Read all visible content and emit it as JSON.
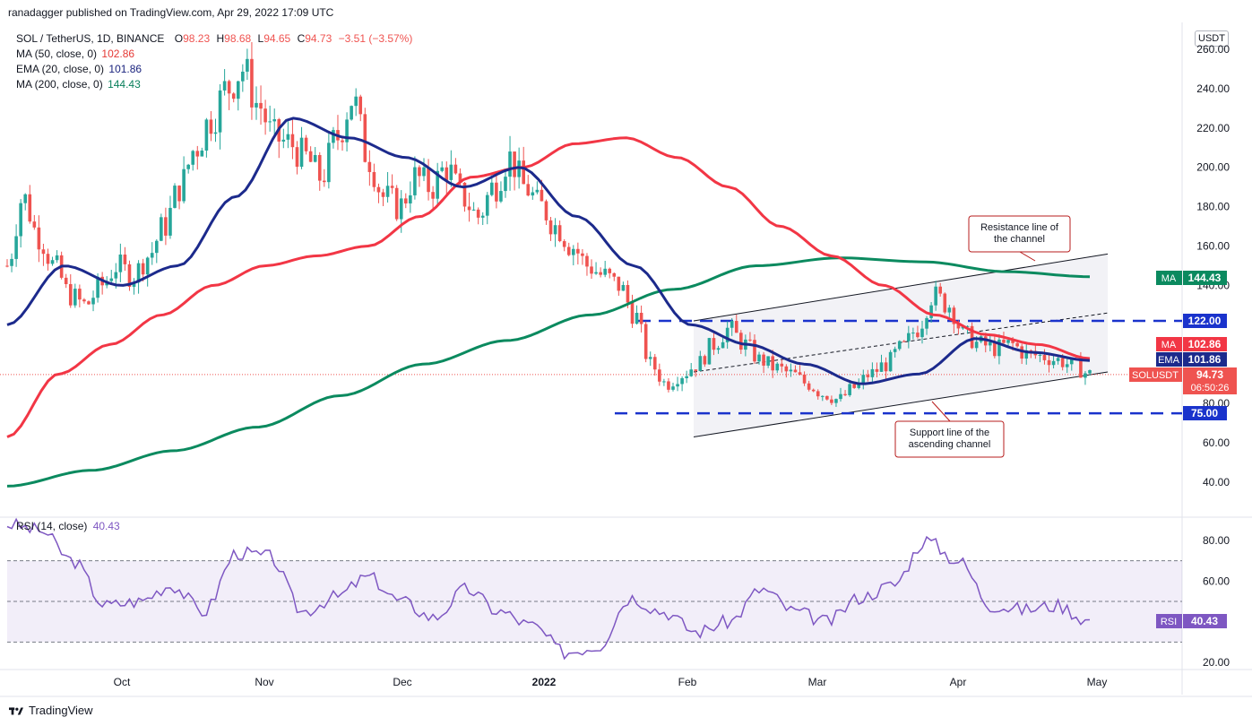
{
  "header": {
    "publish_line": "ranadagger published on TradingView.com, Apr 29, 2022 17:09 UTC",
    "symbol": "SOL / TetherUS, 1D, BINANCE",
    "ohlc": {
      "O": "98.23",
      "H": "98.68",
      "L": "94.65",
      "C": "94.73",
      "change": "−3.51 (−3.57%)"
    }
  },
  "legend": {
    "ma50": {
      "label": "MA (50, close, 0)",
      "value": "102.86",
      "color": "#e53935"
    },
    "ema20": {
      "label": "EMA (20, close, 0)",
      "value": "101.86",
      "color": "#1a237e"
    },
    "ma200": {
      "label": "MA (200, close, 0)",
      "value": "144.43",
      "color": "#087f5b"
    }
  },
  "currency_button": "USDT",
  "price_axis": {
    "ticks": [
      "260.00",
      "240.00",
      "220.00",
      "200.00",
      "180.00",
      "160.00",
      "140.00",
      "80.00",
      "60.00",
      "40.00"
    ]
  },
  "price_labels": {
    "ma": {
      "name": "MA",
      "value": "144.43"
    },
    "level_122": "122.00",
    "ma50": {
      "name": "MA",
      "value": "102.86"
    },
    "ema": {
      "name": "EMA",
      "value": "101.86"
    },
    "last": {
      "name": "SOLUSDT",
      "value": "94.73",
      "countdown": "06:50:26"
    },
    "level_75": "75.00"
  },
  "annotations": {
    "resistance": [
      "Resistance line of",
      "the channel"
    ],
    "support": [
      "Support line of the",
      "ascending channel"
    ]
  },
  "rsi": {
    "label": "RSI (14, close)",
    "value": "40.43",
    "axis_ticks": [
      "80.00",
      "60.00",
      "20.00"
    ],
    "tag": "RSI"
  },
  "time_axis": [
    "Oct",
    "Nov",
    "Dec",
    "2022",
    "Feb",
    "Mar",
    "Apr",
    "May"
  ],
  "footer": {
    "brand": "TradingView"
  },
  "colors": {
    "up": "#26a69a",
    "down": "#ef5350",
    "ma50": "#f23645",
    "ema20": "#1c2a8c",
    "ma200": "#0b8a5f",
    "rsi": "#7e57c2",
    "level": "#1a33cc"
  },
  "chart_data": {
    "type": "candlestick",
    "title": "SOL / TetherUS, 1D, BINANCE",
    "ylim": [
      25,
      265
    ],
    "levels": [
      122,
      75
    ],
    "channel": {
      "upper_start": 122,
      "upper_end": 156,
      "lower_start": 63,
      "lower_end": 96,
      "mid_start": 96,
      "mid_end": 126
    },
    "series": [
      {
        "name": "Price (close, approx)",
        "values": [
          150,
          185,
          165,
          150,
          135,
          130,
          140,
          150,
          145,
          155,
          170,
          190,
          210,
          225,
          240,
          250,
          232,
          215,
          212,
          205,
          195,
          215,
          235,
          205,
          185,
          180,
          195,
          190,
          200,
          185,
          175,
          190,
          205,
          190,
          180,
          170,
          160,
          150,
          145,
          140,
          125,
          100,
          90,
          95,
          100,
          110,
          118,
          110,
          102,
          98,
          95,
          90,
          85,
          82,
          88,
          95,
          100,
          108,
          118,
          135,
          130,
          115,
          110,
          108,
          110,
          105,
          104,
          102,
          99,
          94.73
        ]
      },
      {
        "name": "MA (50, close, 0)",
        "values": [
          63,
          95,
          110,
          125,
          140,
          150,
          155,
          160,
          175,
          195,
          200,
          212,
          215,
          205,
          190,
          170,
          155,
          140,
          125,
          115,
          110,
          102.86
        ]
      },
      {
        "name": "EMA (20, close, 0)",
        "values": [
          120,
          150,
          140,
          150,
          185,
          225,
          215,
          205,
          190,
          200,
          175,
          150,
          120,
          110,
          100,
          90,
          95,
          113,
          106,
          101.86
        ]
      },
      {
        "name": "MA (200, close, 0)",
        "values": [
          38,
          46,
          56,
          68,
          84,
          100,
          112,
          125,
          138,
          150,
          154,
          152,
          147,
          144.43
        ]
      },
      {
        "name": "RSI (14, close)",
        "values": [
          88,
          85,
          70,
          48,
          50,
          58,
          45,
          74,
          72,
          45,
          52,
          62,
          50,
          42,
          56,
          45,
          38,
          25,
          28,
          52,
          45,
          35,
          40,
          56,
          45,
          40,
          52,
          58,
          80,
          70,
          48,
          46,
          48,
          40.43
        ]
      }
    ]
  }
}
